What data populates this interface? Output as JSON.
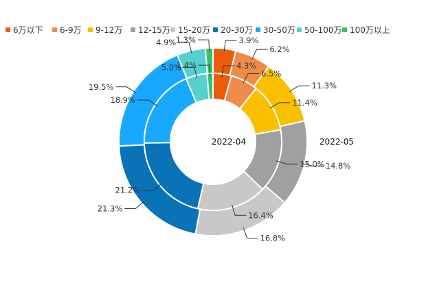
{
  "chart_data": {
    "type": "pie",
    "categories": [
      "6万以下",
      "6-9万",
      "9-12万",
      "12-15万",
      "15-20万",
      "20-30万",
      "30-50万",
      "50-100万",
      "100万以上"
    ],
    "colors": [
      "#ea5b0c",
      "#f08c4a",
      "#fac000",
      "#a0a0a0",
      "#c8c8c8",
      "#0a73b7",
      "#18a9ff",
      "#55d0cf",
      "#31c46e"
    ],
    "legend_position": "top",
    "series": [
      {
        "name": "2022-04",
        "ring": "inner",
        "values": [
          4.3,
          6.5,
          11.4,
          15.0,
          16.4,
          21.2,
          18.9,
          5.0,
          1.4
        ],
        "labels": [
          "4.3%",
          "6.5%",
          "11.4%",
          "15.0%",
          "16.4%",
          "21.2%",
          "18.9%",
          "5.0%",
          "1.4%"
        ]
      },
      {
        "name": "2022-05",
        "ring": "outer",
        "values": [
          3.9,
          6.2,
          11.3,
          14.8,
          16.8,
          21.3,
          19.5,
          4.9,
          1.3
        ],
        "labels": [
          "3.9%",
          "6.2%",
          "11.3%",
          "14.8%",
          "16.8%",
          "21.3%",
          "19.5%",
          "4.9%",
          "1.3%"
        ]
      }
    ]
  }
}
